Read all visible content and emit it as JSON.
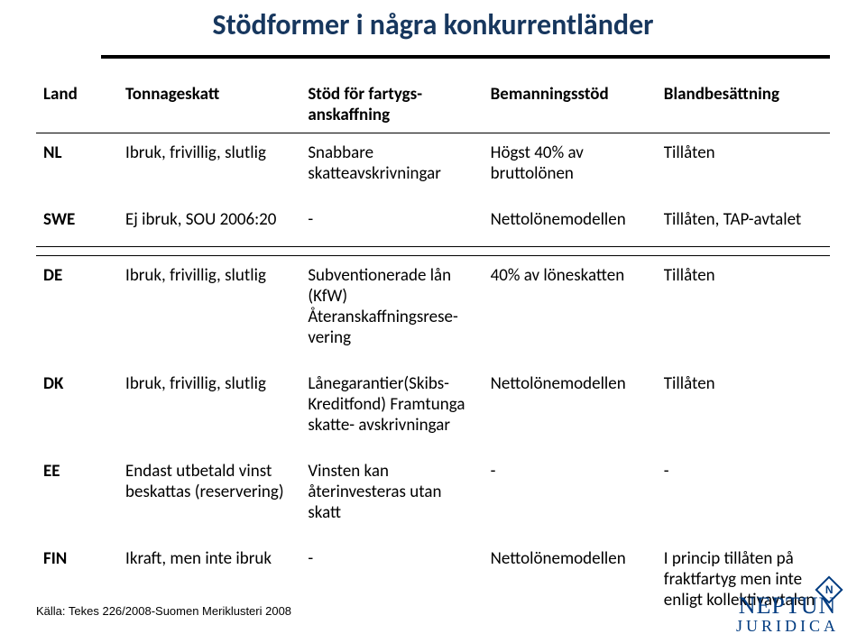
{
  "title": {
    "text": "Stödformer i några konkurrentländer",
    "color": "#17375e",
    "fontsize": 32
  },
  "underline_color": "#000000",
  "table": {
    "fontsize": 19,
    "text_color": "#000000",
    "border_color": "#000000",
    "headers": [
      "Land",
      "Tonnageskatt",
      "Stöd för fartygs-\nanskaffning",
      "Bemanningsstöd",
      "Blandbesättning"
    ],
    "group1": [
      {
        "land": "NL",
        "col2": "Ibruk, frivillig, slutlig",
        "col3": "Snabbare skatteavskrivningar",
        "col4": "Högst 40% av bruttolönen",
        "col5": "Tillåten"
      },
      {
        "land": "SWE",
        "col2": "Ej ibruk, SOU 2006:20",
        "col3": "-",
        "col4": "Nettolönemodellen",
        "col5": "Tillåten, TAP-avtalet"
      }
    ],
    "group2": [
      {
        "land": "DE",
        "col2": "Ibruk, frivillig, slutlig",
        "col3": "Subventionerade lån (KfW) Återanskaffningsrese-\nvering",
        "col4": "40% av löneskatten",
        "col5": "Tillåten"
      },
      {
        "land": "DK",
        "col2": "Ibruk, frivillig, slutlig",
        "col3": "Lånegarantier(Skibs-\nKreditfond) Framtunga skatte-\navskrivningar",
        "col4": "Nettolönemodellen",
        "col5": "Tillåten"
      },
      {
        "land": "EE",
        "col2": "Endast utbetald vinst beskattas (reservering)",
        "col3": "Vinsten kan återinvesteras utan skatt",
        "col4": "-",
        "col5": "-"
      },
      {
        "land": "FIN",
        "col2": "Ikraft, men inte ibruk",
        "col3": "-",
        "col4": "Nettolönemodellen",
        "col5": "I princip tillåten på fraktfartyg men inte enligt kollektivavtalen"
      }
    ]
  },
  "source": {
    "text": "Källa: Tekes 226/2008-Suomen Meriklusteri 2008"
  },
  "logo": {
    "line1": "NEPTUN",
    "line2": "JURIDICA",
    "badge": "N",
    "color": "#003b80"
  }
}
